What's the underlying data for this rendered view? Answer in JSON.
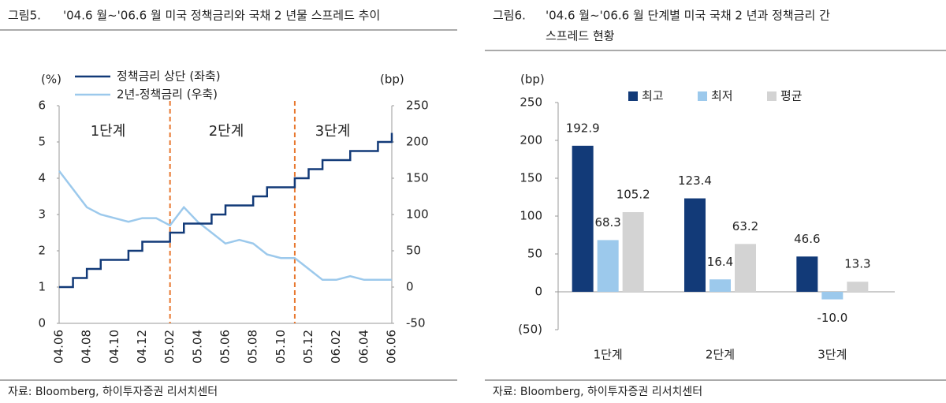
{
  "chart_data": [
    {
      "type": "line",
      "figure_label": "그림5.",
      "title": "'04.6 월~'06.6 월 미국 정책금리와 국채 2 년물 스프레드 추이",
      "ylabel": "(%)",
      "y2label": "(bp)",
      "categories": [
        "04.06",
        null,
        "04.08",
        null,
        "04.10",
        null,
        "04.12",
        null,
        "05.02",
        null,
        "05.04",
        null,
        "05.06",
        null,
        "05.08",
        null,
        "05.10",
        null,
        "05.12",
        null,
        "06.02",
        null,
        "06.04",
        null,
        "06.06"
      ],
      "series": [
        {
          "name": "정책금리 상단 (좌축)",
          "color": "#123a78",
          "drawstyle": "steps-post",
          "values": [
            1.0,
            1.25,
            1.5,
            1.75,
            1.75,
            2.0,
            2.25,
            2.25,
            2.5,
            2.75,
            2.75,
            3.0,
            3.25,
            3.25,
            3.5,
            3.75,
            3.75,
            4.0,
            4.25,
            4.5,
            4.5,
            4.75,
            4.75,
            5.0,
            5.25
          ]
        },
        {
          "name": "2년-정책금리 (우축)",
          "color": "#9cc9ec",
          "axis": "y2",
          "drawstyle": "default",
          "values": [
            160,
            135,
            110,
            100,
            95,
            90,
            95,
            95,
            85,
            110,
            90,
            75,
            60,
            65,
            60,
            45,
            40,
            40,
            25,
            10,
            10,
            15,
            10,
            10,
            10
          ]
        }
      ],
      "ylim": [
        0,
        6
      ],
      "yticks": [
        0,
        1,
        2,
        3,
        4,
        5,
        6
      ],
      "y2lim": [
        -50,
        250
      ],
      "y2ticks": [
        -50,
        0,
        50,
        100,
        150,
        200,
        250
      ],
      "annotations": [
        "1단계",
        "2단계",
        "3단계"
      ],
      "legend": "upper left",
      "grid": false,
      "source": "자료: Bloomberg, 하이투자증권 리서치센터"
    },
    {
      "type": "bar",
      "figure_label": "그림6.",
      "title": [
        "'04.6 월~'06.6 월 단계별 미국 국채 2 년과 정책금리 간",
        "스프레드 현황"
      ],
      "ylabel": "(bp)",
      "categories": [
        "1단계",
        "2단계",
        "3단계"
      ],
      "series": [
        {
          "name": "최고",
          "color": "#123a78",
          "values": [
            192.9,
            123.4,
            46.6
          ]
        },
        {
          "name": "최저",
          "color": "#9cc9ec",
          "values": [
            68.3,
            16.4,
            -10.0
          ],
          "value_labels": [
            "68.3",
            "16.4",
            "-10.0"
          ]
        },
        {
          "name": "평균",
          "color": "#d3d3d3",
          "values": [
            105.2,
            63.2,
            13.3
          ]
        }
      ],
      "ylim": [
        -50,
        250
      ],
      "yticks": [
        {
          "value": -50,
          "label": "(50)"
        },
        0,
        50,
        100,
        150,
        200,
        250
      ],
      "legend": "upper center",
      "grid": false,
      "source": "자료: Bloomberg, 하이투자증권 리서치센터"
    }
  ]
}
